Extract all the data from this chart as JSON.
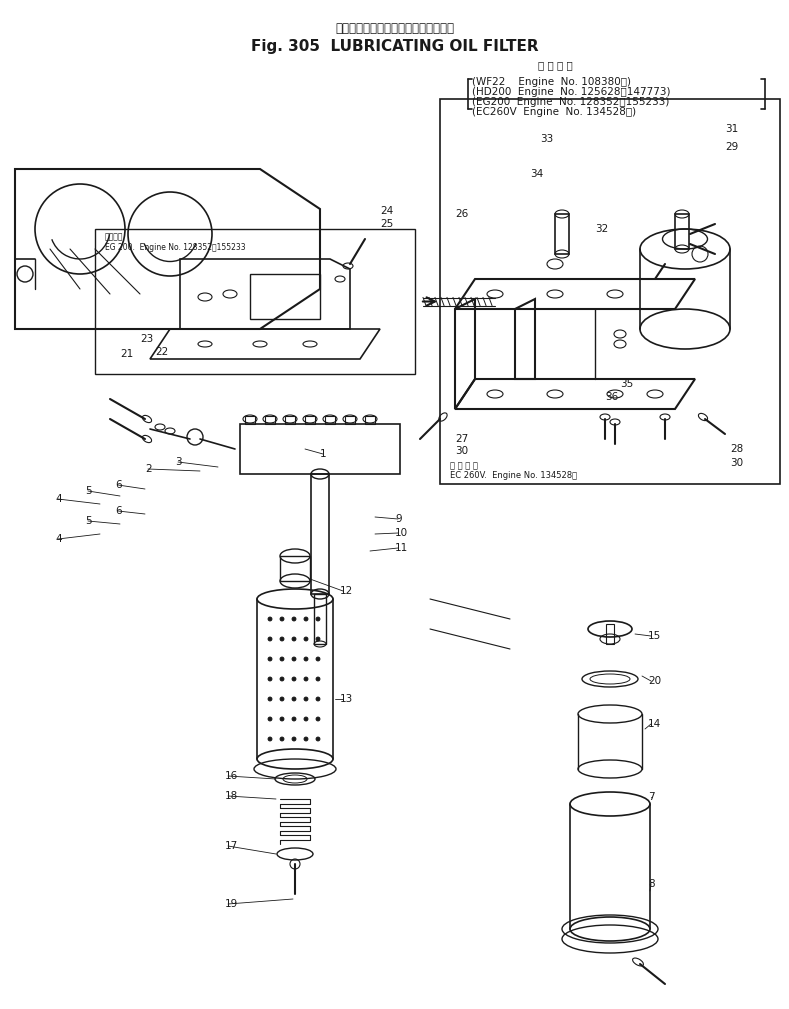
{
  "title_japanese": "ルーブリケーティングオイルフィルタ",
  "title_english": "Fig. 305  LUBRICATING OIL FILTER",
  "applicability_header": "適 用 号 機",
  "app_line1": "(WF22    Engine  No. 108380～)",
  "app_line2": "(HD200  Engine  No. 125628～147773)",
  "app_line3": "(EG200  Engine  No. 128352～155233)",
  "app_line4": "(EC260V  Engine  No. 134528～)",
  "eg200_label": "適用号機",
  "eg200_sub": "EG 200.  Engine No. 128352～155233",
  "ec260v_label": "適 用 号 機",
  "ec260v_sub": "EC 260V.  Engine No. 134528～",
  "bg_color": "#ffffff",
  "lc": "#1a1a1a"
}
